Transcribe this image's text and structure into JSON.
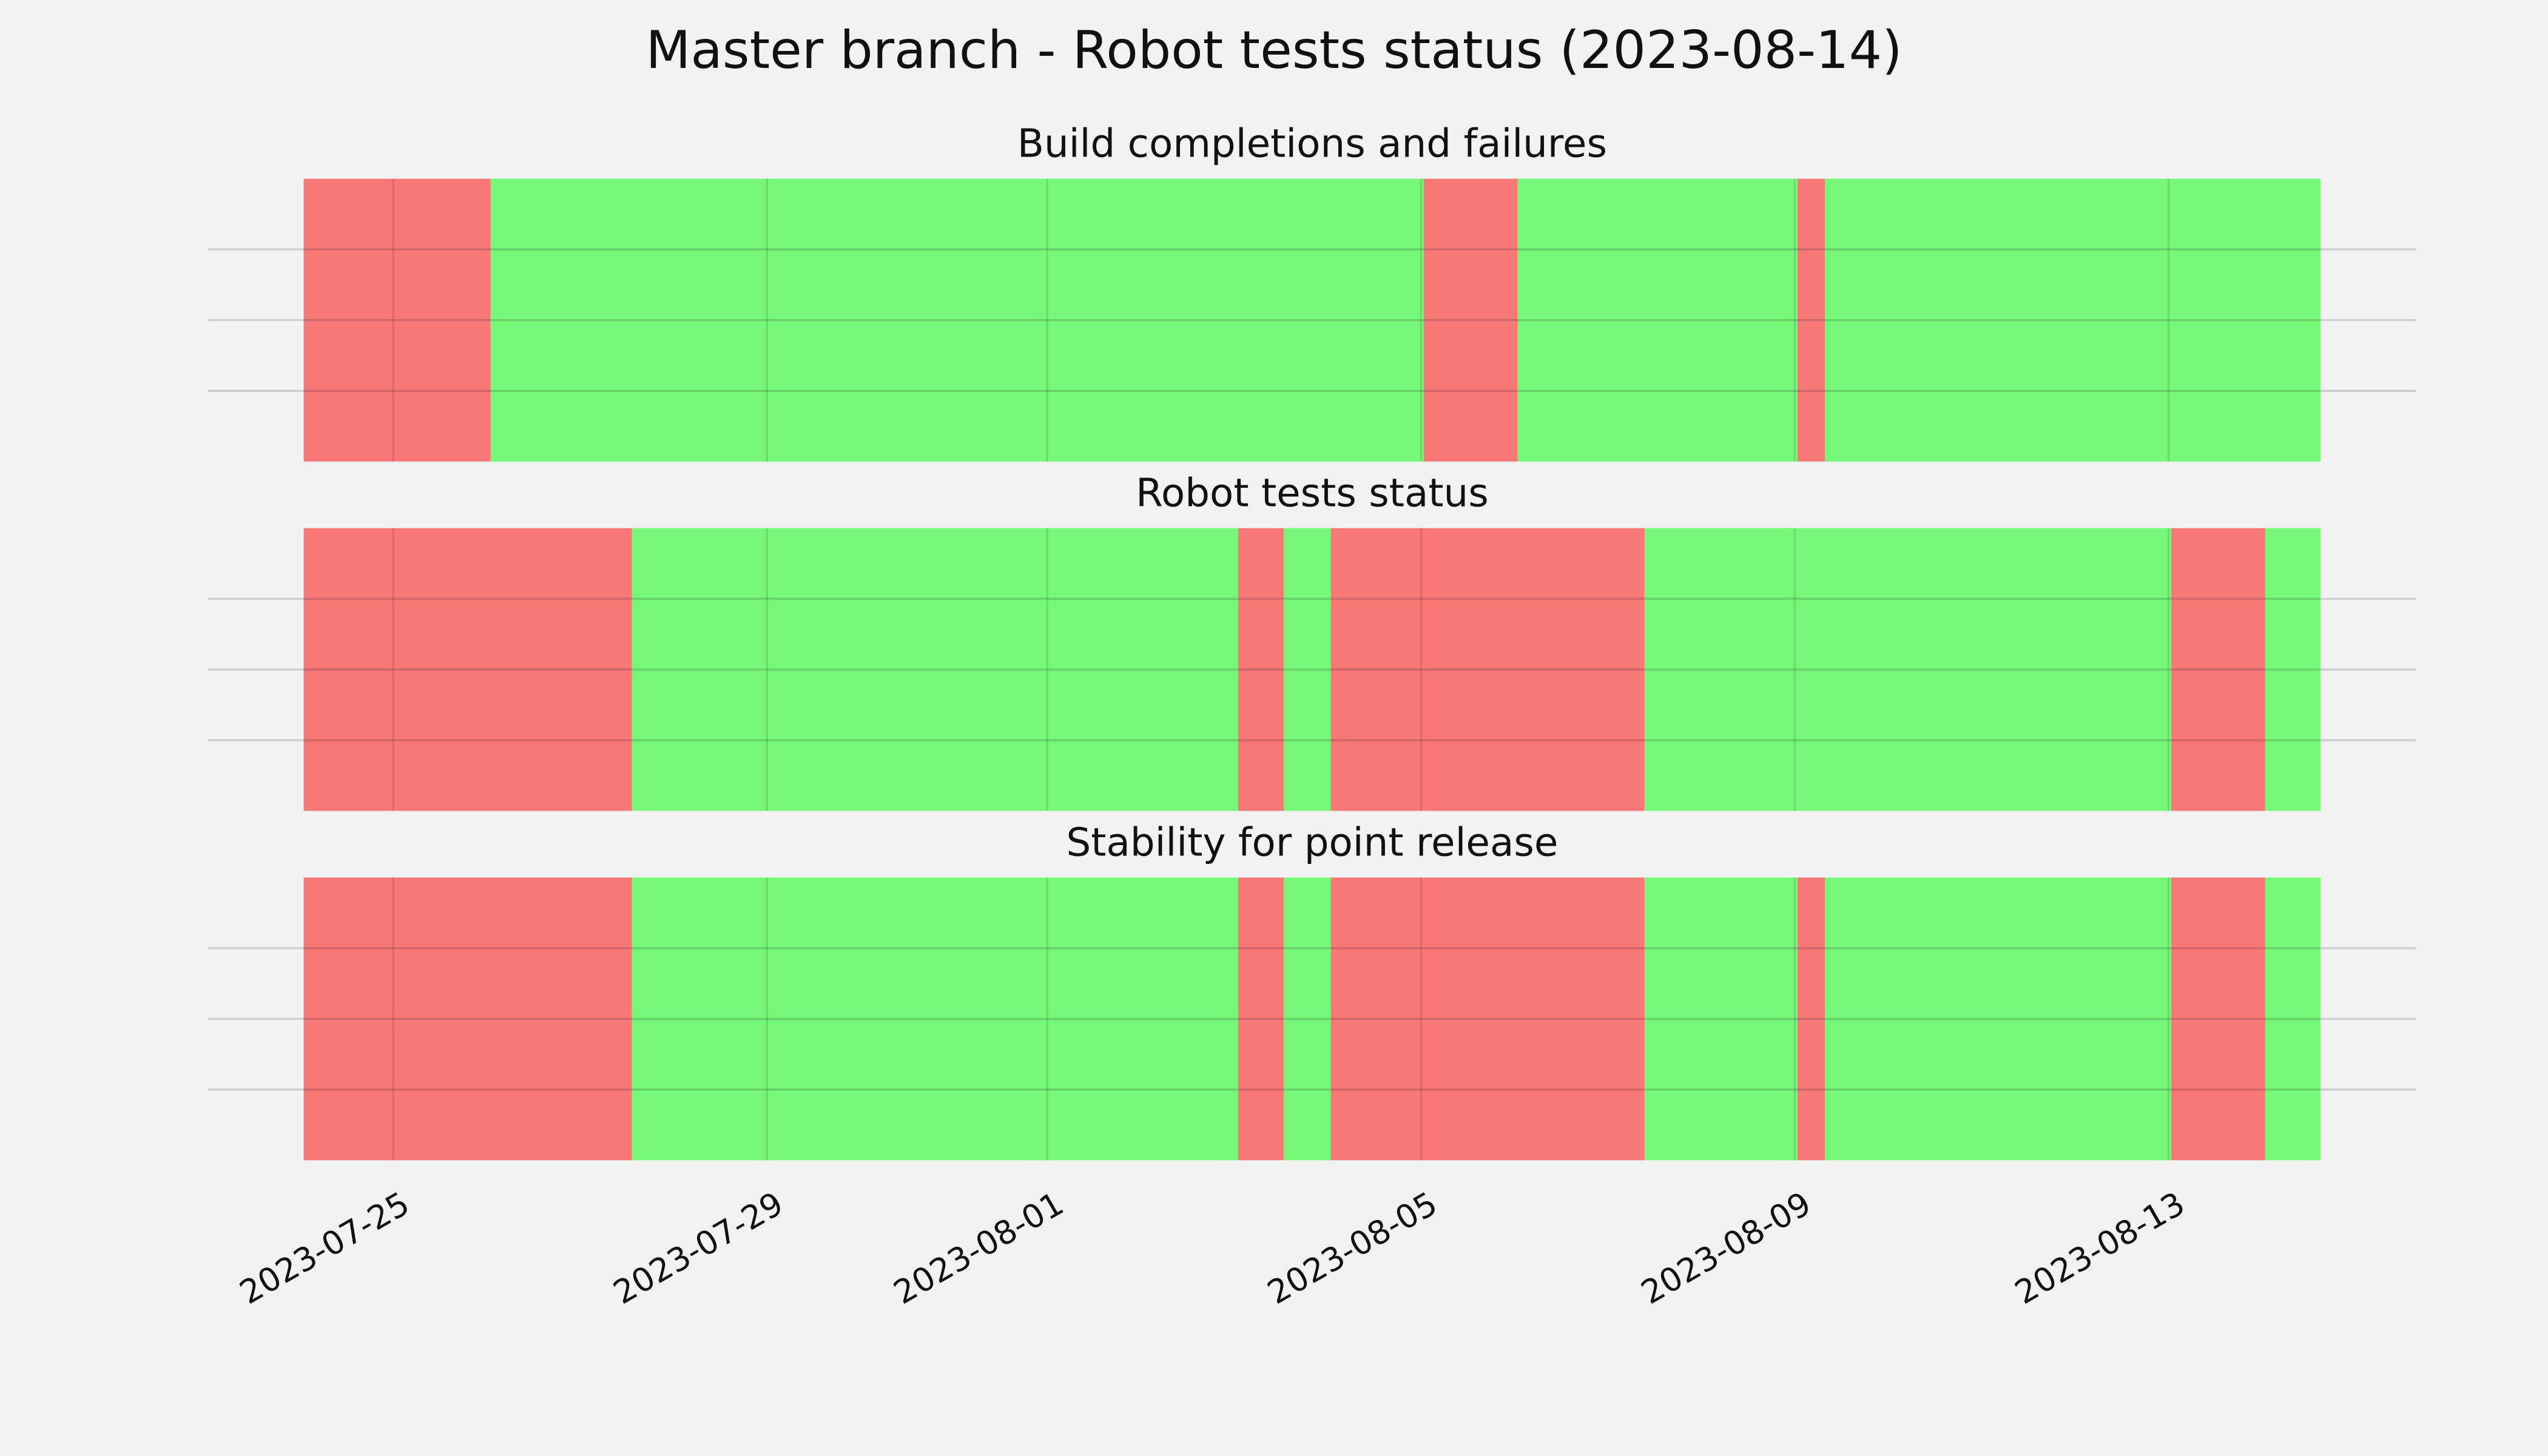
{
  "title": "Master branch - Robot tests status (2023-08-14)",
  "x_axis": {
    "xlim": [
      "2023-07-23 00:25",
      "2023-08-15 15:40"
    ],
    "xticks": [
      "2023-07-25",
      "2023-07-29",
      "2023-08-01",
      "2023-08-05",
      "2023-08-09",
      "2023-08-13"
    ]
  },
  "chart_data": [
    {
      "type": "timeline",
      "title": "Build completions and failures",
      "starts": [
        "2023-07-24 01:00",
        "2023-07-26 01:00",
        "2023-08-05 00:40",
        "2023-08-06 00:50",
        "2023-08-09 00:40",
        "2023-08-09 07:45"
      ],
      "ends": [
        "2023-07-26 01:00",
        "2023-08-05 00:40",
        "2023-08-06 00:50",
        "2023-08-09 00:40",
        "2023-08-09 07:45",
        "2023-08-14 15:00"
      ],
      "colors": [
        "#f87878",
        "#77f777",
        "#f87878",
        "#77f777",
        "#f87878",
        "#77f777"
      ],
      "ylim": [
        0,
        1
      ],
      "yticks": [
        0.25,
        0.5,
        0.75
      ],
      "grid": true
    },
    {
      "type": "timeline",
      "title": "Robot tests status",
      "starts": [
        "2023-07-24 01:00",
        "2023-07-27 13:20",
        "2023-08-03 01:00",
        "2023-08-03 12:45",
        "2023-08-04 00:50",
        "2023-08-07 09:25",
        "2023-08-13 00:40",
        "2023-08-14 00:50"
      ],
      "ends": [
        "2023-07-27 13:20",
        "2023-08-03 01:00",
        "2023-08-03 12:45",
        "2023-08-04 00:50",
        "2023-08-07 09:25",
        "2023-08-13 00:40",
        "2023-08-14 00:50",
        "2023-08-14 15:00"
      ],
      "colors": [
        "#f87878",
        "#77f777",
        "#f87878",
        "#77f777",
        "#f87878",
        "#77f777",
        "#f87878",
        "#77f777"
      ],
      "ylim": [
        0,
        1
      ],
      "yticks": [
        0.25,
        0.5,
        0.75
      ],
      "grid": true
    },
    {
      "type": "timeline",
      "title": "Stability for point release",
      "starts": [
        "2023-07-24 01:00",
        "2023-07-27 13:20",
        "2023-08-03 01:00",
        "2023-08-03 12:45",
        "2023-08-04 00:50",
        "2023-08-07 09:25",
        "2023-08-09 00:40",
        "2023-08-09 07:45",
        "2023-08-13 00:40",
        "2023-08-14 00:50"
      ],
      "ends": [
        "2023-07-27 13:20",
        "2023-08-03 01:00",
        "2023-08-03 12:45",
        "2023-08-04 00:50",
        "2023-08-07 09:25",
        "2023-08-09 00:40",
        "2023-08-09 07:45",
        "2023-08-13 00:40",
        "2023-08-14 00:50",
        "2023-08-14 15:00"
      ],
      "colors": [
        "#f87878",
        "#77f777",
        "#f87878",
        "#77f777",
        "#f87878",
        "#77f777",
        "#f87878",
        "#77f777",
        "#f87878",
        "#77f777"
      ],
      "ylim": [
        0,
        1
      ],
      "yticks": [
        0.25,
        0.5,
        0.75
      ],
      "grid": true
    }
  ]
}
